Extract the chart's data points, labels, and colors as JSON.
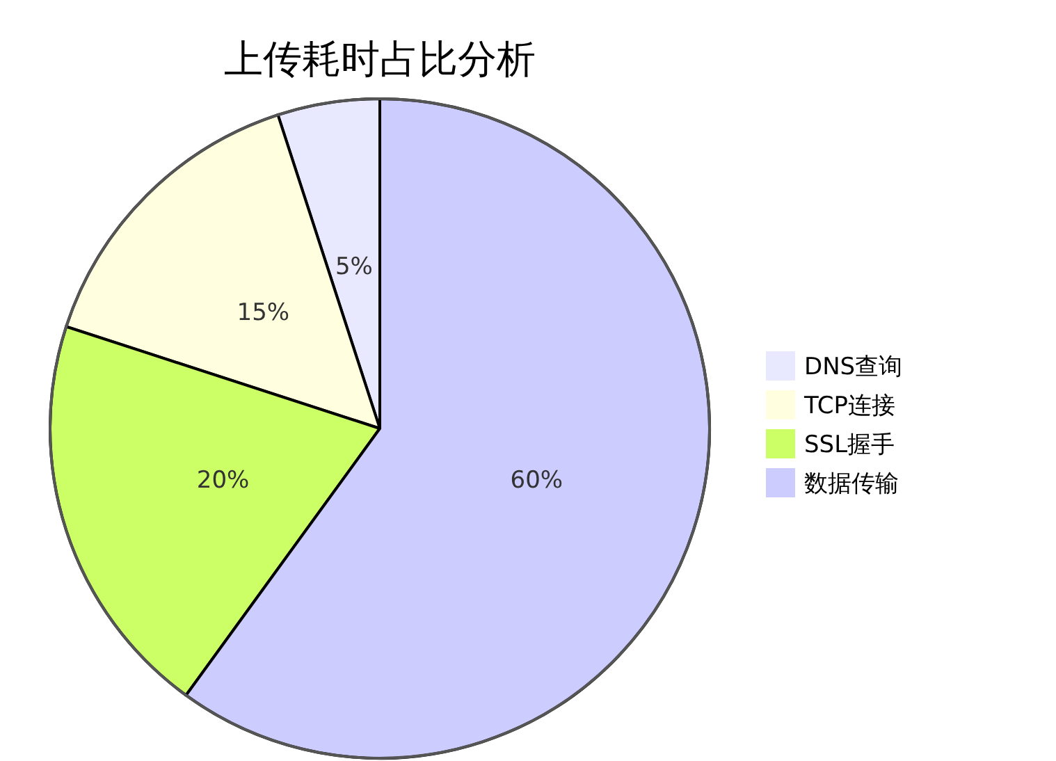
{
  "chart_data": {
    "type": "pie",
    "title": "上传耗时占比分析",
    "categories": [
      "DNS查询",
      "TCP连接",
      "SSL握手",
      "数据传输"
    ],
    "values": [
      5,
      15,
      20,
      60
    ],
    "colors": [
      "#e8e8ff",
      "#ffffe0",
      "#ccff66",
      "#ccccff"
    ],
    "value_labels": [
      "5%",
      "15%",
      "20%",
      "60%"
    ],
    "legend": "right"
  }
}
